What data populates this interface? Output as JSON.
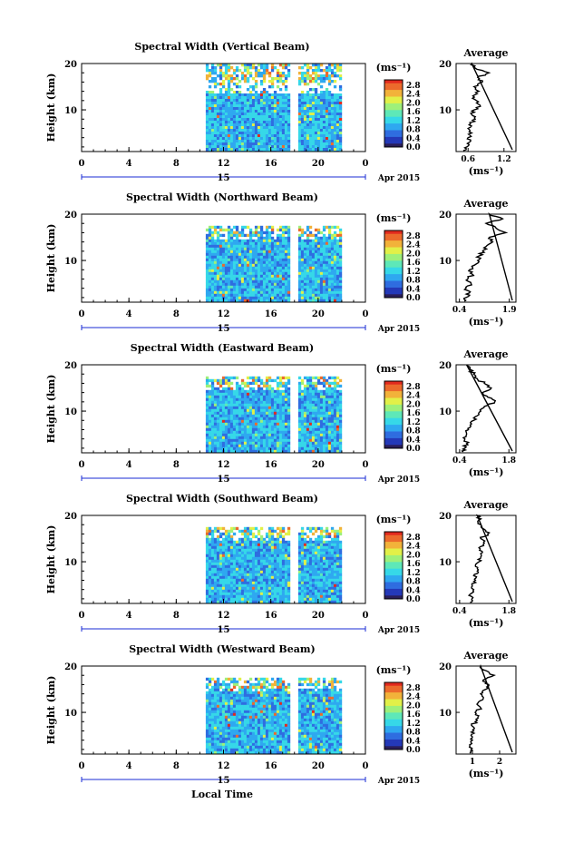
{
  "colors": {
    "background": "#ffffff",
    "axis": "#000000",
    "date_arrow": "#1a2bd6",
    "scale": [
      "#2a1e5a",
      "#2439b8",
      "#2f6de0",
      "#2fa8f0",
      "#36d8e8",
      "#5ee8b8",
      "#9ef07a",
      "#e2f048",
      "#f2b23a",
      "#ec6a2c",
      "#e22a1e"
    ]
  },
  "shared": {
    "x_ticks": [
      "0",
      "4",
      "8",
      "12",
      "16",
      "20",
      "0"
    ],
    "date_mid_label": "15",
    "date_right_label": "Apr 2015",
    "colorbar_unit": "(ms⁻¹)",
    "colorbar_ticks": [
      "2.8",
      "2.4",
      "2.0",
      "1.6",
      "1.2",
      "0.8",
      "0.4",
      "0.0"
    ],
    "height_label": "Height (km)",
    "height_ticks": [
      "20",
      "10"
    ],
    "average_title": "Average",
    "average_unit": "(ms⁻¹)",
    "xlabel": "Local Time"
  },
  "chart_data": [
    {
      "type": "heatmap",
      "title": "Spectral Width (Vertical Beam)",
      "xlim": [
        0,
        24
      ],
      "ylim": [
        1,
        20
      ],
      "data_hours": [
        10.5,
        21.8
      ],
      "gap_hours": [
        17.6,
        18.2
      ],
      "average_profile": {
        "xticks": [
          "0.6",
          "1.2"
        ],
        "xlim": [
          0.4,
          1.4
        ],
        "points": [
          [
            0.52,
            1.2
          ],
          [
            0.58,
            2
          ],
          [
            0.62,
            3
          ],
          [
            0.6,
            4
          ],
          [
            0.66,
            5
          ],
          [
            0.6,
            6
          ],
          [
            0.64,
            7
          ],
          [
            0.72,
            8
          ],
          [
            0.66,
            9
          ],
          [
            0.7,
            10
          ],
          [
            0.8,
            11
          ],
          [
            0.74,
            12
          ],
          [
            0.68,
            13
          ],
          [
            0.78,
            14
          ],
          [
            0.7,
            15
          ],
          [
            0.84,
            16
          ],
          [
            0.76,
            17
          ],
          [
            0.95,
            18
          ],
          [
            0.72,
            19
          ],
          [
            0.66,
            20
          ]
        ]
      }
    },
    {
      "type": "heatmap",
      "title": "Spectral Width (Northward Beam)",
      "xlim": [
        0,
        24
      ],
      "ylim": [
        1,
        20
      ],
      "data_hours": [
        10.5,
        21.8
      ],
      "gap_hours": [
        17.6,
        18.2
      ],
      "average_profile": {
        "xticks": [
          "0.4",
          "1.9"
        ],
        "xlim": [
          0.3,
          2.1
        ],
        "points": [
          [
            0.55,
            1.2
          ],
          [
            0.6,
            2
          ],
          [
            0.7,
            3
          ],
          [
            0.6,
            4
          ],
          [
            0.75,
            5
          ],
          [
            0.65,
            6
          ],
          [
            0.8,
            7
          ],
          [
            0.7,
            8
          ],
          [
            0.85,
            9
          ],
          [
            0.95,
            10
          ],
          [
            1.0,
            11
          ],
          [
            1.1,
            12
          ],
          [
            1.2,
            13
          ],
          [
            1.4,
            14
          ],
          [
            1.3,
            15
          ],
          [
            1.8,
            16
          ],
          [
            1.5,
            17
          ],
          [
            1.2,
            18
          ],
          [
            1.7,
            19
          ],
          [
            1.3,
            20
          ]
        ]
      }
    },
    {
      "type": "heatmap",
      "title": "Spectral Width (Eastward Beam)",
      "xlim": [
        0,
        24
      ],
      "ylim": [
        1,
        20
      ],
      "data_hours": [
        10.5,
        21.8
      ],
      "gap_hours": [
        17.6,
        18.2
      ],
      "average_profile": {
        "xticks": [
          "0.4",
          "1.8"
        ],
        "xlim": [
          0.3,
          2.0
        ],
        "points": [
          [
            0.5,
            1.2
          ],
          [
            0.55,
            2
          ],
          [
            0.6,
            3
          ],
          [
            0.55,
            4
          ],
          [
            0.6,
            5
          ],
          [
            0.65,
            6
          ],
          [
            0.7,
            7
          ],
          [
            0.8,
            8
          ],
          [
            0.9,
            9
          ],
          [
            1.0,
            10
          ],
          [
            1.1,
            11
          ],
          [
            1.4,
            12
          ],
          [
            1.2,
            13
          ],
          [
            1.05,
            14
          ],
          [
            1.3,
            15
          ],
          [
            1.1,
            16
          ],
          [
            0.9,
            17
          ],
          [
            0.8,
            18
          ],
          [
            0.7,
            19
          ],
          [
            0.6,
            20
          ]
        ]
      }
    },
    {
      "type": "heatmap",
      "title": "Spectral Width (Southward Beam)",
      "xlim": [
        0,
        24
      ],
      "ylim": [
        1,
        20
      ],
      "data_hours": [
        10.5,
        21.8
      ],
      "gap_hours": [
        17.6,
        18.2
      ],
      "average_profile": {
        "xticks": [
          "0.4",
          "1.8"
        ],
        "xlim": [
          0.3,
          2.0
        ],
        "points": [
          [
            0.7,
            1.2
          ],
          [
            0.75,
            2
          ],
          [
            0.7,
            3
          ],
          [
            0.8,
            4
          ],
          [
            0.75,
            5
          ],
          [
            0.85,
            6
          ],
          [
            0.8,
            7
          ],
          [
            0.9,
            8
          ],
          [
            0.85,
            9
          ],
          [
            0.95,
            10
          ],
          [
            1.0,
            11
          ],
          [
            1.05,
            12
          ],
          [
            0.95,
            13
          ],
          [
            1.1,
            14
          ],
          [
            1.0,
            15
          ],
          [
            1.2,
            16
          ],
          [
            1.1,
            17
          ],
          [
            1.0,
            18
          ],
          [
            0.95,
            19
          ],
          [
            0.9,
            20
          ]
        ]
      }
    },
    {
      "type": "heatmap",
      "title": "Spectral Width (Westward Beam)",
      "xlim": [
        0,
        24
      ],
      "ylim": [
        1,
        20
      ],
      "data_hours": [
        10.5,
        21.8
      ],
      "gap_hours": [
        17.6,
        18.2
      ],
      "average_profile": {
        "xticks": [
          "1",
          "2"
        ],
        "xlim": [
          0.4,
          2.6
        ],
        "points": [
          [
            0.9,
            1.2
          ],
          [
            0.95,
            2
          ],
          [
            0.9,
            3
          ],
          [
            1.0,
            4
          ],
          [
            0.95,
            5
          ],
          [
            1.05,
            6
          ],
          [
            1.0,
            7
          ],
          [
            1.1,
            8
          ],
          [
            1.2,
            9
          ],
          [
            1.1,
            10
          ],
          [
            1.3,
            11
          ],
          [
            1.2,
            12
          ],
          [
            1.4,
            13
          ],
          [
            1.3,
            14
          ],
          [
            1.5,
            15
          ],
          [
            1.6,
            16
          ],
          [
            1.4,
            17
          ],
          [
            1.8,
            18
          ],
          [
            1.5,
            19
          ],
          [
            1.3,
            20
          ]
        ]
      }
    }
  ]
}
